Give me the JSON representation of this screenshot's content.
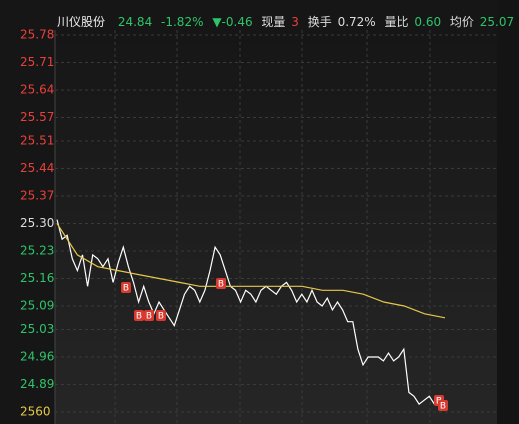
{
  "header": {
    "name": "川仪股份",
    "price": "24.84",
    "change_pct": "-1.82%",
    "change": "▼-0.46",
    "volume_label": "现量",
    "volume": "3",
    "turnover_label": "换手",
    "turnover": "0.72%",
    "ratio_label": "量比",
    "ratio": "0.60",
    "avg_label": "均价",
    "avg": "25.07"
  },
  "chart_data": {
    "type": "line",
    "ylim": [
      24.82,
      25.78
    ],
    "yticks": [
      25.78,
      25.71,
      25.64,
      25.57,
      25.51,
      25.44,
      25.37,
      {
        "value": 25.3,
        "label": "25.30"
      },
      25.23,
      25.16,
      25.09,
      25.03,
      24.96,
      24.89
    ],
    "ytick_colors": [
      "#e8413c",
      "#e8413c",
      "#e8413c",
      "#e8413c",
      "#e8413c",
      "#e8413c",
      "#e8413c",
      "#dddddd",
      "#2fc46a",
      "#2fc46a",
      "#2fc46a",
      "#2fc46a",
      "#2fc46a",
      "#2fc46a"
    ],
    "volume_max": 2560,
    "marker_label": "B",
    "grid": true,
    "series": [
      {
        "color": "#ffffff",
        "values": [
          25.31,
          25.26,
          25.27,
          25.21,
          25.18,
          25.22,
          25.14,
          25.22,
          25.21,
          25.19,
          25.21,
          25.15,
          25.2,
          25.24,
          25.19,
          25.15,
          25.1,
          25.14,
          25.1,
          25.07,
          25.1,
          25.08,
          25.06,
          25.04,
          25.08,
          25.12,
          25.14,
          25.13,
          25.1,
          25.13,
          25.18,
          25.24,
          25.22,
          25.18,
          25.14,
          25.13,
          25.1,
          25.13,
          25.12,
          25.1,
          25.13,
          25.14,
          25.13,
          25.12,
          25.14,
          25.15,
          25.13,
          25.1,
          25.12,
          25.1,
          25.13,
          25.1,
          25.09,
          25.11,
          25.08,
          25.1,
          25.08,
          25.05,
          25.05,
          24.98,
          24.94,
          24.96,
          24.96,
          24.96,
          24.95,
          24.97,
          24.95,
          24.96,
          24.98,
          24.87,
          24.86,
          24.84,
          24.85,
          24.86,
          24.84,
          24.85,
          24.84
        ]
      },
      {
        "color": "#e6c84a",
        "values": [
          25.3,
          25.22,
          25.19,
          25.18,
          25.17,
          25.16,
          25.15,
          25.14,
          25.14,
          25.14,
          25.14,
          25.14,
          25.14,
          25.13,
          25.13,
          25.12,
          25.1,
          25.09,
          25.07,
          25.06
        ]
      }
    ]
  }
}
